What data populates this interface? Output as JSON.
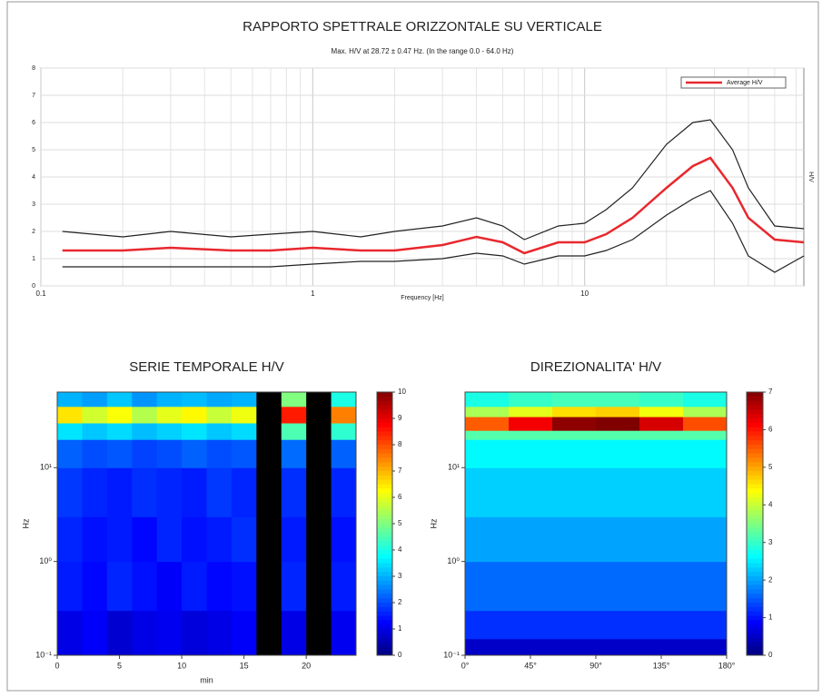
{
  "chart_data": [
    {
      "type": "line",
      "title": "RAPPORTO SPETTRALE ORIZZONTALE SU VERTICALE",
      "subtitle": "Max. H/V at 28.72 ± 0.47 Hz. (In the range 0.0 - 64.0 Hz)",
      "xlabel": "Frequency [Hz]",
      "ylabel": "H/V",
      "xscale": "log",
      "grid": true,
      "legend": "upper right",
      "x": [
        0.12,
        0.2,
        0.3,
        0.5,
        0.7,
        1,
        1.5,
        2,
        3,
        4,
        5,
        6,
        8,
        10,
        12,
        15,
        20,
        25,
        29,
        35,
        40,
        50,
        64
      ],
      "series": [
        {
          "name": "Average H/V",
          "color": "#e8282e",
          "values": [
            1.3,
            1.3,
            1.4,
            1.3,
            1.3,
            1.4,
            1.3,
            1.3,
            1.5,
            1.8,
            1.6,
            1.2,
            1.6,
            1.6,
            1.9,
            2.5,
            3.6,
            4.4,
            4.7,
            3.6,
            2.5,
            1.7,
            1.6
          ]
        },
        {
          "color": "#222222",
          "values": [
            2.0,
            1.8,
            2.0,
            1.8,
            1.9,
            2.0,
            1.8,
            2.0,
            2.2,
            2.5,
            2.2,
            1.7,
            2.2,
            2.3,
            2.8,
            3.6,
            5.2,
            6.0,
            6.1,
            5.0,
            3.6,
            2.2,
            2.1
          ]
        },
        {
          "color": "#222222",
          "values": [
            0.7,
            0.7,
            0.7,
            0.7,
            0.7,
            0.8,
            0.9,
            0.9,
            1.0,
            1.2,
            1.1,
            0.8,
            1.1,
            1.1,
            1.3,
            1.7,
            2.6,
            3.2,
            3.5,
            2.3,
            1.1,
            0.5,
            1.1
          ]
        }
      ],
      "xlim": [
        0.1,
        64
      ],
      "xticks": [
        0.1,
        1,
        10
      ],
      "ylim": [
        0,
        8
      ],
      "yticks": [
        0,
        1,
        2,
        3,
        4,
        5,
        6,
        7,
        8
      ]
    },
    {
      "type": "heatmap",
      "title": "SERIE TEMPORALE H/V",
      "xlabel": "min",
      "ylabel": "Hz",
      "yscale": "log",
      "x_bins": [
        0,
        2,
        4,
        6,
        8,
        10,
        12,
        14,
        16,
        18,
        20,
        22,
        24
      ],
      "y_bins": [
        0.1,
        0.3,
        1,
        3,
        10,
        20,
        30,
        45,
        64
      ],
      "z": [
        [
          1,
          1.2,
          0.8,
          1,
          1.1,
          0.9,
          1,
          1.2,
          null,
          1,
          null,
          1.1
        ],
        [
          1.5,
          1.3,
          1.6,
          1.4,
          1.2,
          1.5,
          1.3,
          1.4,
          null,
          1.6,
          null,
          1.5
        ],
        [
          1.6,
          1.4,
          1.5,
          1.3,
          1.6,
          1.4,
          1.5,
          1.7,
          null,
          1.5,
          null,
          1.4
        ],
        [
          1.8,
          1.6,
          1.5,
          1.7,
          1.6,
          1.5,
          1.8,
          1.6,
          null,
          1.7,
          null,
          1.6
        ],
        [
          2.2,
          2,
          2.1,
          1.9,
          2,
          2.2,
          2,
          2.1,
          null,
          2.3,
          null,
          2.2
        ],
        [
          3.5,
          3.2,
          3.4,
          3.1,
          3.3,
          3.5,
          3.2,
          3.4,
          null,
          4.5,
          null,
          4.2
        ],
        [
          6.5,
          5.8,
          6.2,
          5.5,
          6,
          6.3,
          5.7,
          6.1,
          null,
          8.5,
          null,
          7.5
        ],
        [
          3,
          2.8,
          3.2,
          2.7,
          3,
          3.1,
          2.9,
          3,
          null,
          5,
          null,
          4
        ]
      ],
      "xlim": [
        0,
        24
      ],
      "xticks": [
        0,
        5,
        10,
        15,
        20
      ],
      "ylim": [
        0.1,
        64
      ],
      "yticks": [
        {
          "value": 0.1,
          "label": "10⁻¹"
        },
        {
          "value": 1,
          "label": "10⁰"
        },
        {
          "value": 10,
          "label": "10¹"
        }
      ],
      "zlim": [
        0,
        10
      ],
      "zticks": [
        0,
        1,
        2,
        3,
        4,
        5,
        6,
        7,
        8,
        9,
        10
      ],
      "colormap": "jet"
    },
    {
      "type": "heatmap",
      "title": "DIREZIONALITA' H/V",
      "ylabel": "Hz",
      "yscale": "log",
      "x_bins": [
        0,
        30,
        60,
        90,
        120,
        150,
        180
      ],
      "y_bins": [
        0.1,
        0.15,
        0.3,
        1,
        3,
        10,
        20,
        25,
        35,
        45,
        64
      ],
      "z": [
        [
          0.5,
          0.5,
          0.5,
          0.5,
          0.5,
          0.5
        ],
        [
          1.2,
          1.2,
          1.2,
          1.2,
          1.2,
          1.2
        ],
        [
          1.6,
          1.6,
          1.6,
          1.6,
          1.6,
          1.6
        ],
        [
          2,
          2,
          2,
          2,
          2,
          2
        ],
        [
          2.3,
          2.3,
          2.3,
          2.3,
          2.3,
          2.3
        ],
        [
          2.6,
          2.6,
          2.6,
          2.6,
          2.6,
          2.6
        ],
        [
          3.2,
          3.2,
          3.2,
          3.2,
          3.2,
          3.2
        ],
        [
          5.5,
          6.2,
          6.9,
          7,
          6.4,
          5.6
        ],
        [
          3.8,
          4.2,
          4.6,
          4.7,
          4.3,
          3.8
        ],
        [
          2.8,
          3,
          3.1,
          3.1,
          3,
          2.8
        ]
      ],
      "xlim": [
        0,
        180
      ],
      "xticks": [
        {
          "value": 0,
          "label": "0°"
        },
        {
          "value": 45,
          "label": "45°"
        },
        {
          "value": 90,
          "label": "90°"
        },
        {
          "value": 135,
          "label": "135°"
        },
        {
          "value": 180,
          "label": "180°"
        }
      ],
      "ylim": [
        0.1,
        64
      ],
      "yticks": [
        {
          "value": 0.1,
          "label": "10⁻¹"
        },
        {
          "value": 1,
          "label": "10⁰"
        },
        {
          "value": 10,
          "label": "10¹"
        }
      ],
      "zlim": [
        0,
        7
      ],
      "zticks": [
        0,
        1,
        2,
        3,
        4,
        5,
        6,
        7
      ],
      "colormap": "jet"
    }
  ]
}
